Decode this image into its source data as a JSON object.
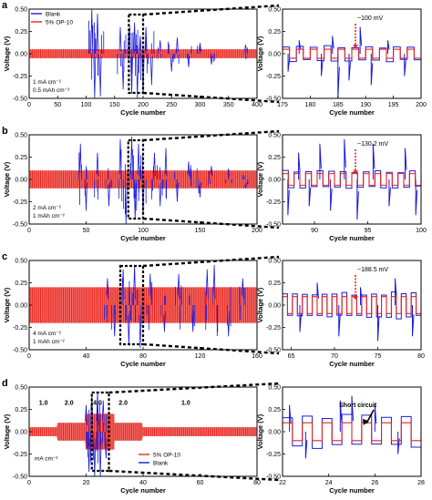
{
  "colors": {
    "blank": "#1a1adc",
    "op10": "#e8231c",
    "red_arrow": "#e8231c"
  },
  "chart_data": [
    {
      "panel": "a",
      "side": "left",
      "type": "line",
      "xlabel": "Cycle number",
      "ylabel": "Voltage (V)",
      "xlim": [
        0,
        400
      ],
      "ylim": [
        -0.5,
        0.5
      ],
      "xticks": [
        "0",
        "50",
        "100",
        "150",
        "200",
        "250",
        "300",
        "350",
        "400"
      ],
      "yticks": [
        "-0.50",
        "-0.25",
        "0.00",
        "0.25",
        "0.50"
      ],
      "legend": [
        {
          "name": "Blank",
          "color": "#1a1adc"
        },
        {
          "name": "5% OP-10",
          "color": "#e8231c"
        }
      ],
      "conditions": [
        "1 mA cm⁻²",
        "0.5 mAh cm⁻²"
      ],
      "zoom_window": [
        175,
        200
      ],
      "series": [
        {
          "name": "5% OP-10",
          "amplitude": 0.05,
          "spikes": []
        },
        {
          "name": "Blank",
          "amplitude": 0.08,
          "spikes": [
            [
              110,
              0.5
            ],
            [
              115,
              -0.5
            ],
            [
              120,
              0.45
            ],
            [
              125,
              -0.48
            ],
            [
              160,
              0.3
            ],
            [
              165,
              -0.4
            ],
            [
              175,
              0.25
            ],
            [
              180,
              -0.45
            ],
            [
              185,
              0.35
            ],
            [
              190,
              -0.5
            ],
            [
              195,
              0.2
            ],
            [
              200,
              -0.45
            ],
            [
              205,
              0.3
            ],
            [
              215,
              -0.35
            ],
            [
              230,
              0.15
            ],
            [
              250,
              -0.2
            ],
            [
              260,
              0.18
            ],
            [
              280,
              -0.15
            ],
            [
              300,
              0.12
            ],
            [
              320,
              -0.12
            ],
            [
              380,
              0.1
            ]
          ]
        }
      ]
    },
    {
      "panel": "a",
      "side": "right",
      "type": "line",
      "xlabel": "Cycle number",
      "ylabel": "Voltage (V)",
      "xlim": [
        175,
        200
      ],
      "ylim": [
        -0.5,
        0.5
      ],
      "xticks": [
        "175",
        "180",
        "185",
        "190",
        "195",
        "200"
      ],
      "yticks": [
        "-0.50",
        "-0.25",
        "0.00",
        "0.25",
        "0.50"
      ],
      "annotation": "~100 mV",
      "series": [
        {
          "name": "5% OP-10",
          "amplitude": 0.05
        },
        {
          "name": "Blank",
          "amplitude": 0.07,
          "spikes": [
            [
              176,
              -0.2
            ],
            [
              178,
              0.15
            ],
            [
              182,
              -0.25
            ],
            [
              184,
              0.2
            ],
            [
              185,
              -0.5
            ],
            [
              187,
              -0.3
            ],
            [
              189,
              0.3
            ],
            [
              191,
              -0.35
            ],
            [
              194,
              0.15
            ],
            [
              197,
              -0.25
            ]
          ]
        }
      ]
    },
    {
      "panel": "b",
      "side": "left",
      "type": "line",
      "xlabel": "Cycle number",
      "ylabel": "Voltage (V)",
      "xlim": [
        0,
        200
      ],
      "ylim": [
        -0.5,
        0.5
      ],
      "xticks": [
        "0",
        "50",
        "100",
        "150",
        "200"
      ],
      "yticks": [
        "-0.50",
        "-0.25",
        "0.00",
        "0.25",
        "0.50"
      ],
      "conditions": [
        "2 mA cm⁻²",
        "1 mAh cm⁻²"
      ],
      "zoom_window": [
        87,
        100
      ],
      "series": [
        {
          "name": "5% OP-10",
          "amplitude": 0.1,
          "spikes": []
        },
        {
          "name": "Blank",
          "amplitude": 0.12,
          "spikes": [
            [
              45,
              0.4
            ],
            [
              50,
              -0.35
            ],
            [
              60,
              0.3
            ],
            [
              70,
              -0.3
            ],
            [
              80,
              0.45
            ],
            [
              85,
              -0.5
            ],
            [
              90,
              0.48
            ],
            [
              93,
              -0.45
            ],
            [
              96,
              0.4
            ],
            [
              100,
              -0.4
            ],
            [
              110,
              0.3
            ],
            [
              115,
              -0.3
            ],
            [
              120,
              0.35
            ],
            [
              130,
              -0.25
            ],
            [
              140,
              0.2
            ],
            [
              150,
              -0.2
            ],
            [
              160,
              0.15
            ],
            [
              175,
              0.12
            ],
            [
              190,
              -0.1
            ]
          ]
        }
      ]
    },
    {
      "panel": "b",
      "side": "right",
      "type": "line",
      "xlabel": "Cycle number",
      "ylabel": "Voltage (V)",
      "xlim": [
        87,
        100
      ],
      "ylim": [
        -0.5,
        0.5
      ],
      "xticks": [
        "90",
        "95",
        "100"
      ],
      "yticks": [
        "-0.50",
        "-0.25",
        "0.00",
        "0.25",
        "0.50"
      ],
      "annotation": "~130.2 mV",
      "series": [
        {
          "name": "5% OP-10",
          "amplitude": 0.065
        },
        {
          "name": "Blank",
          "amplitude": 0.08,
          "spikes": [
            [
              87.5,
              -0.4
            ],
            [
              88.5,
              0.3
            ],
            [
              89.5,
              -0.3
            ],
            [
              90.5,
              0.4
            ],
            [
              91.5,
              -0.35
            ],
            [
              92.8,
              0.45
            ],
            [
              94,
              -0.45
            ],
            [
              95.5,
              0.4
            ],
            [
              97,
              -0.3
            ],
            [
              98.5,
              0.35
            ],
            [
              99.5,
              -0.4
            ]
          ]
        }
      ]
    },
    {
      "panel": "c",
      "side": "left",
      "type": "line",
      "xlabel": "Cycle number",
      "ylabel": "Voltage (V)",
      "xlim": [
        0,
        160
      ],
      "ylim": [
        -0.5,
        0.5
      ],
      "xticks": [
        "0",
        "40",
        "80",
        "120",
        "160"
      ],
      "yticks": [
        "-0.50",
        "-0.25",
        "0.00",
        "0.25",
        "0.50"
      ],
      "conditions": [
        "4 mA cm⁻²",
        "1 mAh cm⁻²"
      ],
      "zoom_window": [
        64,
        80
      ],
      "series": [
        {
          "name": "5% OP-10",
          "amplitude": 0.2,
          "spikes": []
        },
        {
          "name": "Blank",
          "amplitude": 0.22,
          "spikes": [
            [
              55,
              0.3
            ],
            [
              60,
              -0.35
            ],
            [
              66,
              0.4
            ],
            [
              70,
              -0.45
            ],
            [
              74,
              0.45
            ],
            [
              78,
              -0.48
            ],
            [
              85,
              0.35
            ],
            [
              95,
              -0.3
            ],
            [
              105,
              0.35
            ],
            [
              115,
              -0.3
            ],
            [
              125,
              0.4
            ],
            [
              130,
              0.45
            ],
            [
              140,
              -0.35
            ],
            [
              150,
              0.3
            ]
          ]
        }
      ]
    },
    {
      "panel": "c",
      "side": "right",
      "type": "line",
      "xlabel": "Cycle number",
      "ylabel": "Voltage (V)",
      "xlim": [
        64,
        80
      ],
      "ylim": [
        -0.5,
        0.5
      ],
      "xticks": [
        "65",
        "70",
        "75",
        "80"
      ],
      "yticks": [
        "-0.50",
        "-0.25",
        "0.00",
        "0.25",
        "0.50"
      ],
      "annotation": "~188.5 mV",
      "series": [
        {
          "name": "5% OP-10",
          "amplitude": 0.095
        },
        {
          "name": "Blank",
          "amplitude": 0.12,
          "spikes": [
            [
              66,
              -0.3
            ],
            [
              68,
              0.25
            ],
            [
              70.5,
              -0.35
            ],
            [
              73,
              0.2
            ],
            [
              75,
              -0.4
            ],
            [
              77,
              0.3
            ],
            [
              79,
              -0.35
            ]
          ]
        }
      ]
    },
    {
      "panel": "d",
      "side": "left",
      "type": "line",
      "xlabel": "Cycle number",
      "ylabel": "Voltage (V)",
      "xlim": [
        0,
        80
      ],
      "ylim": [
        -0.5,
        0.5
      ],
      "xticks": [
        "0",
        "20",
        "40",
        "60",
        "80"
      ],
      "yticks": [
        "-0.50",
        "-0.25",
        "0.00",
        "0.25",
        "0.50"
      ],
      "legend": [
        {
          "name": "5% OP-10",
          "color": "#e8231c"
        },
        {
          "name": "Blank",
          "color": "#1a1adc"
        }
      ],
      "unit_label": "mA cm⁻²",
      "rate_labels": [
        {
          "text": "1.0",
          "x": 5
        },
        {
          "text": "2.0",
          "x": 14
        },
        {
          "text": "4.0",
          "x": 24
        },
        {
          "text": "2.0",
          "x": 33
        },
        {
          "text": "1.0",
          "x": 55
        }
      ],
      "rate_steps": [
        [
          0,
          10,
          0.05
        ],
        [
          10,
          20,
          0.1
        ],
        [
          20,
          30,
          0.2
        ],
        [
          30,
          40,
          0.1
        ],
        [
          40,
          80,
          0.05
        ]
      ],
      "zoom_window": [
        22,
        28
      ],
      "series": [
        {
          "name": "5% OP-10",
          "amplitude": 0.05
        },
        {
          "name": "Blank",
          "amplitude": 0.06,
          "spikes": [
            [
              20,
              0.3
            ],
            [
              21,
              -0.45
            ],
            [
              22,
              0.4
            ],
            [
              23,
              -0.5
            ],
            [
              24,
              0.45
            ],
            [
              25,
              -0.5
            ],
            [
              26,
              0.35
            ],
            [
              27,
              -0.3
            ]
          ]
        }
      ]
    },
    {
      "panel": "d",
      "side": "right",
      "type": "line",
      "xlabel": "Cycle number",
      "ylabel": "Voltage (V)",
      "xlim": [
        22,
        28
      ],
      "ylim": [
        -0.5,
        0.5
      ],
      "xticks": [
        "22",
        "24",
        "26",
        "28"
      ],
      "yticks": [
        "-0.50",
        "-0.25",
        "0.00",
        "0.25",
        "0.50"
      ],
      "annotation": "Short circuit",
      "series": [
        {
          "name": "5% OP-10",
          "amplitude": 0.1
        },
        {
          "name": "Blank",
          "amplitude": 0.15,
          "spikes": [
            [
              22.3,
              0.3
            ],
            [
              23,
              -0.3
            ],
            [
              24.5,
              0.35
            ],
            [
              25,
              0.4
            ],
            [
              26,
              0.3
            ],
            [
              27,
              -0.25
            ]
          ]
        }
      ]
    }
  ]
}
